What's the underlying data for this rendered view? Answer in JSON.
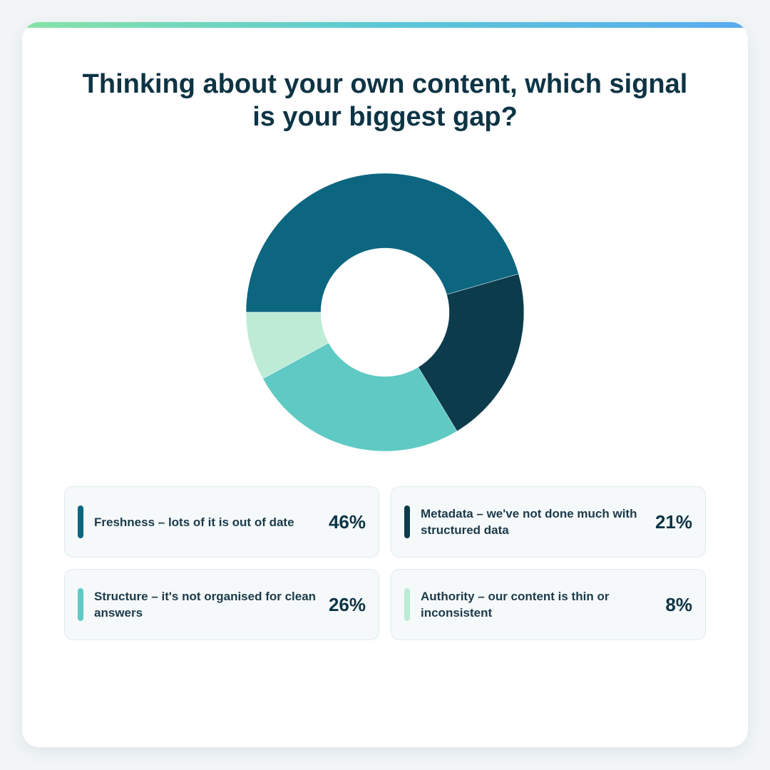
{
  "chart_data": {
    "type": "donut",
    "title": "Thinking about your own content, which signal is your biggest gap?",
    "categories": [
      "Freshness – lots of it is out of date",
      "Metadata – we've not done much with structured data",
      "Structure – it's not organised for clean answers",
      "Authority – our content is thin or inconsistent"
    ],
    "values": [
      46,
      21,
      26,
      8
    ],
    "value_labels": [
      "46%",
      "21%",
      "26%",
      "8%"
    ],
    "colors": [
      "#0c6680",
      "#0c3b4c",
      "#5fc9c3",
      "#bdebd6"
    ]
  }
}
